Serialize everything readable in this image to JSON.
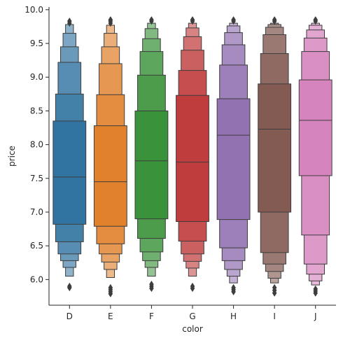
{
  "chart_data": {
    "type": "boxen",
    "xlabel": "color",
    "ylabel": "price",
    "ylim": [
      5.62,
      10.04
    ],
    "yticks": [
      "6.0",
      "6.5",
      "7.0",
      "7.5",
      "8.0",
      "8.5",
      "9.0",
      "9.5",
      "10.0"
    ],
    "categories": [
      "D",
      "E",
      "F",
      "G",
      "H",
      "I",
      "J"
    ],
    "colors": [
      "#3274a1",
      "#e1812c",
      "#3a923a",
      "#c03d3e",
      "#9372b2",
      "#845b53",
      "#d684bd"
    ],
    "series": [
      {
        "category": "D",
        "median": 7.52,
        "boxes": [
          [
            6.82,
            8.35
          ],
          [
            6.56,
            8.75
          ],
          [
            6.38,
            9.22
          ],
          [
            6.28,
            9.45
          ],
          [
            6.18,
            9.65
          ],
          [
            6.05,
            9.78
          ]
        ],
        "outliers": [
          5.88,
          5.9,
          9.8,
          9.83
        ]
      },
      {
        "category": "E",
        "median": 7.45,
        "boxes": [
          [
            6.79,
            8.28
          ],
          [
            6.53,
            8.74
          ],
          [
            6.38,
            9.2
          ],
          [
            6.26,
            9.45
          ],
          [
            6.15,
            9.65
          ],
          [
            6.03,
            9.77
          ]
        ],
        "outliers": [
          5.79,
          5.82,
          5.85,
          5.88,
          9.8,
          9.83,
          9.85
        ]
      },
      {
        "category": "F",
        "median": 7.76,
        "boxes": [
          [
            6.9,
            8.5
          ],
          [
            6.61,
            9.03
          ],
          [
            6.41,
            9.38
          ],
          [
            6.28,
            9.57
          ],
          [
            6.18,
            9.72
          ],
          [
            6.05,
            9.8
          ]
        ],
        "outliers": [
          5.87,
          5.9,
          5.93,
          9.83,
          9.85
        ]
      },
      {
        "category": "G",
        "median": 7.74,
        "boxes": [
          [
            6.86,
            8.73
          ],
          [
            6.57,
            9.1
          ],
          [
            6.38,
            9.4
          ],
          [
            6.27,
            9.6
          ],
          [
            6.17,
            9.73
          ],
          [
            6.05,
            9.8
          ]
        ],
        "outliers": [
          5.87,
          5.9,
          9.83,
          9.85
        ]
      },
      {
        "category": "H",
        "median": 8.14,
        "boxes": [
          [
            6.89,
            8.68
          ],
          [
            6.47,
            9.18
          ],
          [
            6.28,
            9.48
          ],
          [
            6.15,
            9.66
          ],
          [
            6.05,
            9.76
          ],
          [
            5.95,
            9.8
          ]
        ],
        "outliers": [
          5.82,
          5.85,
          5.88,
          9.83,
          9.85
        ]
      },
      {
        "category": "I",
        "median": 8.23,
        "boxes": [
          [
            7.0,
            8.9
          ],
          [
            6.4,
            9.35
          ],
          [
            6.23,
            9.63
          ],
          [
            6.12,
            9.74
          ],
          [
            6.02,
            9.78
          ],
          [
            5.95,
            9.8
          ]
        ],
        "outliers": [
          5.8,
          5.84,
          5.88,
          9.83,
          9.85
        ]
      },
      {
        "category": "J",
        "median": 8.36,
        "boxes": [
          [
            7.54,
            8.96
          ],
          [
            6.66,
            9.38
          ],
          [
            6.23,
            9.58
          ],
          [
            6.08,
            9.7
          ],
          [
            5.98,
            9.77
          ],
          [
            5.92,
            9.8
          ]
        ],
        "outliers": [
          5.8,
          5.83,
          5.86,
          9.83,
          9.85
        ]
      }
    ]
  }
}
